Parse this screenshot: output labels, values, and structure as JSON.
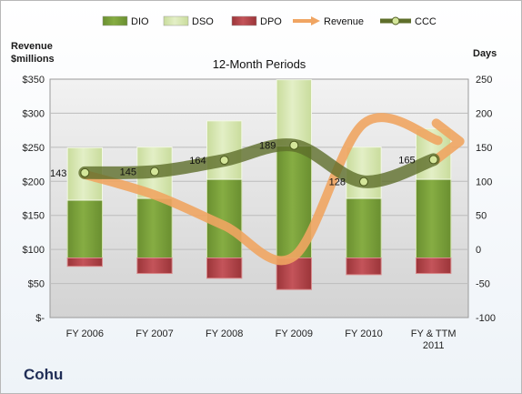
{
  "company": "Cohu",
  "chart_data": {
    "type": "bar",
    "title": "12-Month Periods",
    "ylabel_left": [
      "Revenue",
      "$millions"
    ],
    "ylabel_right": "Days",
    "categories": [
      "FY 2006",
      "FY 2007",
      "FY 2008",
      "FY 2009",
      "FY 2010",
      "FY & TTM 2011"
    ],
    "category_lines": [
      [
        "FY 2006"
      ],
      [
        "FY 2007"
      ],
      [
        "FY 2008"
      ],
      [
        "FY 2009"
      ],
      [
        "FY 2010"
      ],
      [
        "FY & TTM",
        "2011"
      ]
    ],
    "left_axis": {
      "min": 0,
      "max": 350,
      "step": 50,
      "tick_labels": [
        "$-",
        "$50",
        "$100",
        "$150",
        "$200",
        "$250",
        "$300",
        "$350"
      ]
    },
    "right_axis": {
      "min": -100,
      "max": 300,
      "step": 50
    },
    "grid": true,
    "legend_position": "top",
    "series": [
      {
        "name": "DIO",
        "kind": "bar",
        "values": [
          97,
          100,
          132,
          188,
          100,
          132
        ],
        "color": "#7da33a"
      },
      {
        "name": "DSO",
        "kind": "bar",
        "values": [
          88,
          86,
          98,
          111,
          86,
          85
        ],
        "color": "#d9e9b6"
      },
      {
        "name": "DPO",
        "kind": "bar",
        "values": [
          -14,
          -26,
          -34,
          -53,
          -28,
          -26
        ],
        "color": "#b24448"
      },
      {
        "name": "Revenue",
        "kind": "line",
        "axis": "left",
        "values": [
          210,
          180,
          135,
          90,
          285,
          260
        ],
        "color": "#f0a562"
      },
      {
        "name": "CCC",
        "kind": "line",
        "axis": "right",
        "values": [
          143,
          145,
          164,
          189,
          128,
          165
        ],
        "color": "#5e6e2a"
      }
    ],
    "data_labels": [
      "143",
      "145",
      "164",
      "189",
      "128",
      "165"
    ]
  }
}
